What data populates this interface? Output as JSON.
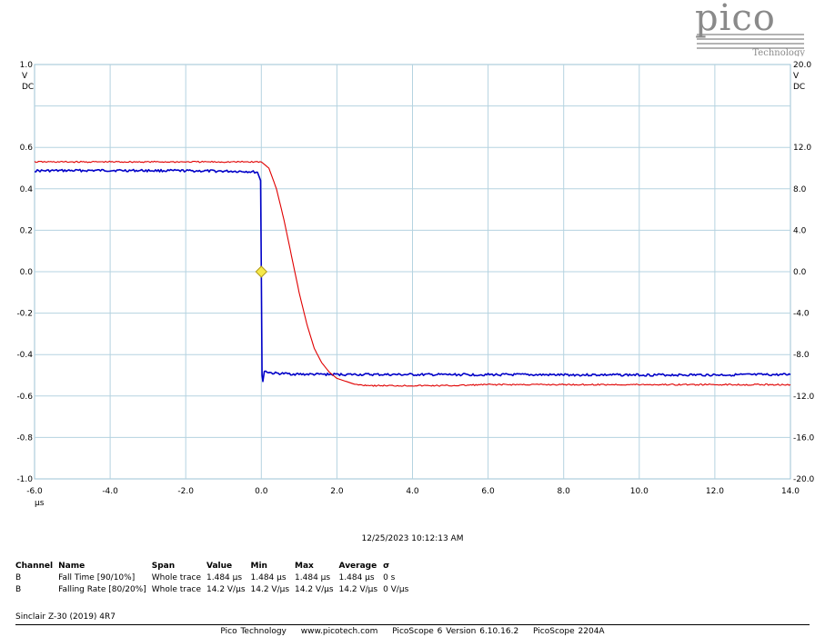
{
  "chart_data": {
    "type": "line",
    "xlabel": "µs",
    "xlim": [
      -6.0,
      14.0
    ],
    "x_ticks": [
      "-6.0",
      "-4.0",
      "-2.0",
      "0.0",
      "2.0",
      "4.0",
      "6.0",
      "8.0",
      "10.0",
      "12.0",
      "14.0"
    ],
    "left_axis": {
      "unit_lines": [
        "V",
        "DC"
      ],
      "ylim": [
        -1.0,
        1.0
      ],
      "ticks": [
        "1.0",
        "0.6",
        "0.4",
        "0.2",
        "0.0",
        "-0.2",
        "-0.4",
        "-0.6",
        "-0.8",
        "-1.0"
      ],
      "tick_values": [
        1.0,
        0.6,
        0.4,
        0.2,
        0.0,
        -0.2,
        -0.4,
        -0.6,
        -0.8,
        -1.0
      ]
    },
    "right_axis": {
      "unit_lines": [
        "V",
        "DC"
      ],
      "ylim": [
        -20.0,
        20.0
      ],
      "ticks": [
        "20.0",
        "12.0",
        "8.0",
        "4.0",
        "0.0",
        "-4.0",
        "-8.0",
        "-12.0",
        "-16.0",
        "-20.0"
      ],
      "tick_values": [
        20.0,
        12.0,
        8.0,
        4.0,
        0.0,
        -4.0,
        -8.0,
        -12.0,
        -16.0,
        -20.0
      ]
    },
    "grid": true,
    "series": [
      {
        "channel": "A",
        "axis": "left",
        "color": "#0000c8",
        "x": [
          -6.0,
          -4.0,
          -2.0,
          -0.4,
          -0.1,
          -0.02,
          0.0,
          0.02,
          0.04,
          0.08,
          0.3,
          1.0,
          2.0,
          4.0,
          6.0,
          8.0,
          10.0,
          12.0,
          14.0
        ],
        "y": [
          0.487,
          0.489,
          0.487,
          0.484,
          0.48,
          0.44,
          0.0,
          -0.5,
          -0.53,
          -0.48,
          -0.49,
          -0.495,
          -0.496,
          -0.497,
          -0.497,
          -0.498,
          -0.498,
          -0.498,
          -0.497
        ]
      },
      {
        "channel": "B",
        "axis": "right",
        "color": "#e00000",
        "x": [
          -6.0,
          -2.0,
          0.0,
          0.2,
          0.4,
          0.6,
          0.8,
          1.0,
          1.2,
          1.4,
          1.6,
          1.8,
          2.0,
          2.5,
          3.0,
          3.5,
          4.0,
          5.0,
          6.0,
          8.0,
          10.0,
          12.0,
          14.0
        ],
        "y": [
          10.6,
          10.6,
          10.6,
          10.0,
          8.0,
          5.0,
          1.5,
          -2.0,
          -5.0,
          -7.4,
          -8.8,
          -9.7,
          -10.3,
          -10.9,
          -11.0,
          -11.0,
          -11.0,
          -11.0,
          -10.9,
          -10.9,
          -10.9,
          -10.9,
          -10.9
        ]
      }
    ],
    "trigger_marker": {
      "x": 0.0,
      "y": 0.0,
      "color": "#f5e94a"
    }
  },
  "logo": {
    "word": "pico",
    "sub": "Technology"
  },
  "timestamp": "12/25/2023 10:12:13 AM",
  "measurements": {
    "headers": [
      "Channel",
      "Name",
      "Span",
      "Value",
      "Min",
      "Max",
      "Average",
      "σ"
    ],
    "rows": [
      [
        "B",
        "Fall Time  [90/10%]",
        "Whole trace",
        "1.484 µs",
        "1.484 µs",
        "1.484 µs",
        "1.484 µs",
        "0 s"
      ],
      [
        "B",
        "Falling Rate  [80/20%]",
        "Whole trace",
        "14.2 V/µs",
        "14.2 V/µs",
        "14.2 V/µs",
        "14.2 V/µs",
        "0 V/µs"
      ]
    ]
  },
  "caption": "Sinclair Z-30 (2019) 4R7",
  "footer": {
    "company": "Pico Technology",
    "website": "www.picotech.com",
    "version": "PicoScope 6 Version 6.10.16.2",
    "device": "PicoScope 2204A"
  }
}
